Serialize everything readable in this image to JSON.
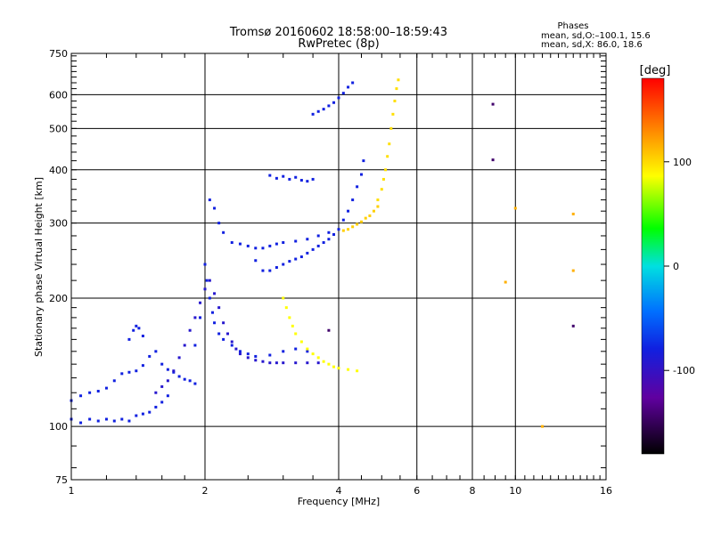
{
  "header": {
    "title_line1": "Tromsø 20160602 18:58:00–18:59:43",
    "title_line2": "RwPretec (8p)",
    "phases_title": "Phases",
    "phases_o": "mean, sd,O:–100.1, 15.6",
    "phases_x": "mean, sd,X:  86.0, 18.6"
  },
  "chart_data": {
    "type": "scatter",
    "xlabel": "Frequency [MHz]",
    "ylabel": "Stationary phase Virtual Height [km]",
    "xscale": "log2",
    "yscale": "log",
    "xlim": [
      1,
      16
    ],
    "ylim": [
      75,
      750
    ],
    "x_ticks": [
      1,
      2,
      4,
      6,
      8,
      10,
      16
    ],
    "y_ticks": [
      75,
      100,
      200,
      300,
      400,
      500,
      600,
      750
    ],
    "grid": true,
    "colorbar": {
      "label": "[deg]",
      "range": [
        -180,
        180
      ],
      "ticks": [
        100,
        0,
        -100
      ],
      "colormap": "rainbow"
    },
    "series": [
      {
        "phase": -100,
        "points": [
          [
            1.0,
            104
          ],
          [
            1.05,
            102
          ],
          [
            1.1,
            104
          ],
          [
            1.15,
            103
          ],
          [
            1.2,
            104
          ],
          [
            1.25,
            103
          ],
          [
            1.3,
            104
          ],
          [
            1.35,
            103
          ],
          [
            1.4,
            106
          ],
          [
            1.45,
            107
          ],
          [
            1.5,
            108
          ],
          [
            1.55,
            111
          ],
          [
            1.6,
            114
          ],
          [
            1.65,
            118
          ]
        ]
      },
      {
        "phase": -100,
        "points": [
          [
            1.0,
            115
          ],
          [
            1.05,
            118
          ],
          [
            1.1,
            120
          ],
          [
            1.15,
            121
          ],
          [
            1.2,
            123
          ],
          [
            1.25,
            128
          ],
          [
            1.3,
            133
          ],
          [
            1.35,
            134
          ],
          [
            1.4,
            135
          ],
          [
            1.45,
            139
          ],
          [
            1.5,
            146
          ],
          [
            1.55,
            150
          ],
          [
            1.6,
            140
          ],
          [
            1.65,
            136
          ],
          [
            1.7,
            134
          ],
          [
            1.75,
            131
          ],
          [
            1.8,
            129
          ],
          [
            1.85,
            128
          ],
          [
            1.9,
            126
          ]
        ]
      },
      {
        "phase": -100,
        "points": [
          [
            1.35,
            160
          ],
          [
            1.38,
            168
          ],
          [
            1.4,
            172
          ],
          [
            1.42,
            170
          ],
          [
            1.45,
            163
          ]
        ]
      },
      {
        "phase": -110,
        "points": [
          [
            1.55,
            120
          ],
          [
            1.6,
            124
          ],
          [
            1.65,
            128
          ],
          [
            1.7,
            135
          ],
          [
            1.75,
            145
          ],
          [
            1.8,
            155
          ],
          [
            1.85,
            168
          ],
          [
            1.9,
            180
          ],
          [
            1.95,
            195
          ],
          [
            2.0,
            210
          ],
          [
            2.05,
            220
          ],
          [
            2.1,
            205
          ],
          [
            2.15,
            190
          ],
          [
            2.2,
            175
          ],
          [
            2.25,
            165
          ],
          [
            2.3,
            158
          ],
          [
            2.35,
            152
          ],
          [
            2.4,
            148
          ],
          [
            2.5,
            145
          ],
          [
            2.6,
            143
          ],
          [
            2.7,
            142
          ],
          [
            2.8,
            141
          ],
          [
            2.9,
            141
          ],
          [
            3.0,
            141
          ],
          [
            3.2,
            141
          ],
          [
            3.4,
            141
          ],
          [
            3.6,
            141
          ]
        ]
      },
      {
        "phase": -100,
        "points": [
          [
            1.9,
            155
          ],
          [
            1.95,
            180
          ],
          [
            2.0,
            240
          ],
          [
            2.02,
            220
          ],
          [
            2.05,
            200
          ],
          [
            2.08,
            185
          ],
          [
            2.1,
            175
          ],
          [
            2.15,
            165
          ],
          [
            2.2,
            160
          ],
          [
            2.3,
            155
          ],
          [
            2.4,
            150
          ],
          [
            2.5,
            148
          ],
          [
            2.6,
            146
          ],
          [
            2.8,
            147
          ],
          [
            3.0,
            150
          ],
          [
            3.2,
            152
          ],
          [
            3.4,
            150
          ]
        ]
      },
      {
        "phase": -100,
        "points": [
          [
            2.05,
            340
          ],
          [
            2.1,
            325
          ],
          [
            2.15,
            300
          ],
          [
            2.2,
            285
          ],
          [
            2.3,
            270
          ],
          [
            2.4,
            268
          ],
          [
            2.5,
            265
          ],
          [
            2.6,
            262
          ],
          [
            2.7,
            262
          ],
          [
            2.8,
            265
          ],
          [
            2.9,
            268
          ],
          [
            3.0,
            270
          ],
          [
            3.2,
            272
          ],
          [
            3.4,
            275
          ],
          [
            3.6,
            280
          ],
          [
            3.8,
            285
          ]
        ]
      },
      {
        "phase": -100,
        "points": [
          [
            2.6,
            245
          ],
          [
            2.7,
            232
          ],
          [
            2.8,
            232
          ],
          [
            2.9,
            236
          ],
          [
            3.0,
            240
          ],
          [
            3.1,
            244
          ],
          [
            3.2,
            247
          ],
          [
            3.3,
            250
          ],
          [
            3.4,
            255
          ],
          [
            3.5,
            260
          ],
          [
            3.6,
            265
          ],
          [
            3.7,
            270
          ],
          [
            3.8,
            275
          ],
          [
            3.9,
            282
          ],
          [
            4.0,
            290
          ],
          [
            4.1,
            305
          ],
          [
            4.2,
            320
          ],
          [
            4.3,
            340
          ],
          [
            4.4,
            365
          ],
          [
            4.5,
            390
          ],
          [
            4.55,
            420
          ]
        ]
      },
      {
        "phase": -100,
        "points": [
          [
            2.8,
            388
          ],
          [
            2.9,
            382
          ],
          [
            3.0,
            386
          ],
          [
            3.1,
            380
          ],
          [
            3.2,
            384
          ],
          [
            3.3,
            378
          ],
          [
            3.4,
            376
          ],
          [
            3.5,
            380
          ]
        ]
      },
      {
        "phase": -100,
        "points": [
          [
            3.5,
            540
          ],
          [
            3.6,
            548
          ],
          [
            3.7,
            555
          ],
          [
            3.8,
            565
          ],
          [
            3.9,
            575
          ],
          [
            4.0,
            590
          ],
          [
            4.1,
            605
          ],
          [
            4.2,
            625
          ],
          [
            4.3,
            640
          ]
        ]
      },
      {
        "phase": 95,
        "points": [
          [
            3.0,
            200
          ],
          [
            3.05,
            190
          ],
          [
            3.1,
            180
          ],
          [
            3.15,
            172
          ],
          [
            3.2,
            165
          ],
          [
            3.3,
            158
          ],
          [
            3.4,
            152
          ],
          [
            3.5,
            148
          ],
          [
            3.6,
            145
          ],
          [
            3.7,
            142
          ],
          [
            3.8,
            140
          ],
          [
            3.9,
            138
          ],
          [
            4.0,
            137
          ],
          [
            4.2,
            136
          ],
          [
            4.4,
            135
          ]
        ]
      },
      {
        "phase": 110,
        "points": [
          [
            4.1,
            288
          ],
          [
            4.2,
            290
          ],
          [
            4.3,
            294
          ],
          [
            4.4,
            298
          ],
          [
            4.5,
            302
          ],
          [
            4.6,
            308
          ],
          [
            4.7,
            312
          ],
          [
            4.8,
            320
          ],
          [
            4.9,
            328
          ]
        ]
      },
      {
        "phase": 105,
        "points": [
          [
            4.9,
            340
          ],
          [
            5.0,
            360
          ],
          [
            5.05,
            380
          ],
          [
            5.1,
            400
          ],
          [
            5.15,
            430
          ],
          [
            5.2,
            460
          ],
          [
            5.25,
            500
          ],
          [
            5.3,
            540
          ],
          [
            5.35,
            580
          ],
          [
            5.4,
            620
          ],
          [
            5.45,
            650
          ]
        ]
      },
      {
        "phase": 120,
        "points": [
          [
            10.0,
            325
          ],
          [
            13.5,
            315
          ],
          [
            9.5,
            218
          ],
          [
            11.5,
            100
          ],
          [
            13.5,
            232
          ]
        ]
      },
      {
        "phase": -150,
        "points": [
          [
            8.9,
            570
          ],
          [
            8.9,
            422
          ],
          [
            13.5,
            172
          ],
          [
            3.8,
            168
          ]
        ]
      }
    ]
  }
}
